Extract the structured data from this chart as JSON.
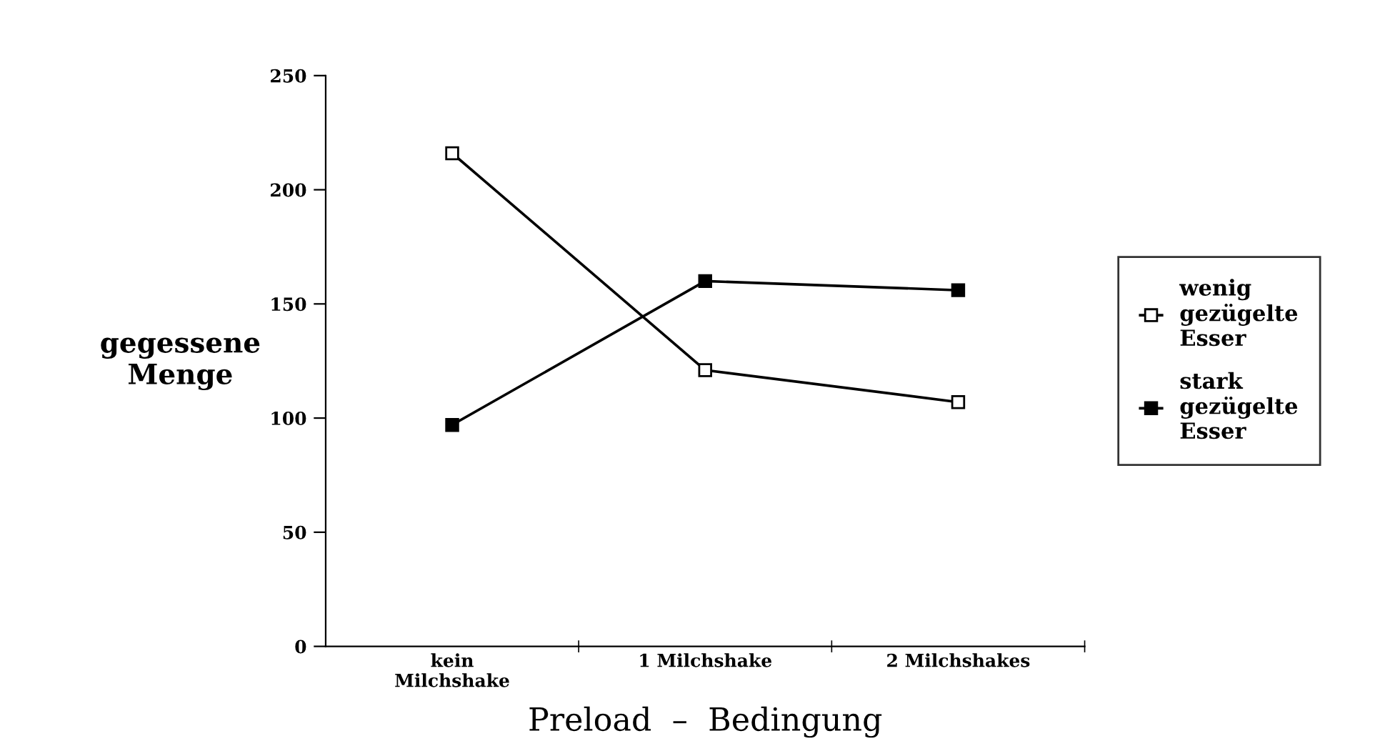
{
  "chart_data": {
    "type": "line",
    "xlabel": "Preload  –  Bedingung",
    "ylabel": "gegessene\nMenge",
    "categories": [
      "kein\nMilchshake",
      "1 Milchshake",
      "2 Milchshakes"
    ],
    "series": [
      {
        "name": "wenig\ngezügelte\nEsser",
        "color": "#000000",
        "marker": "square",
        "values": [
          216,
          121,
          107
        ]
      },
      {
        "name": "stark\ngezügelte\nEsser",
        "color": "#000000",
        "marker": "square",
        "values": [
          97,
          160,
          156
        ]
      }
    ],
    "ylim": [
      0,
      250
    ],
    "yticks": [
      0,
      50,
      100,
      150,
      200,
      250
    ],
    "grid": false,
    "legend": "right",
    "line_style": "solid"
  }
}
